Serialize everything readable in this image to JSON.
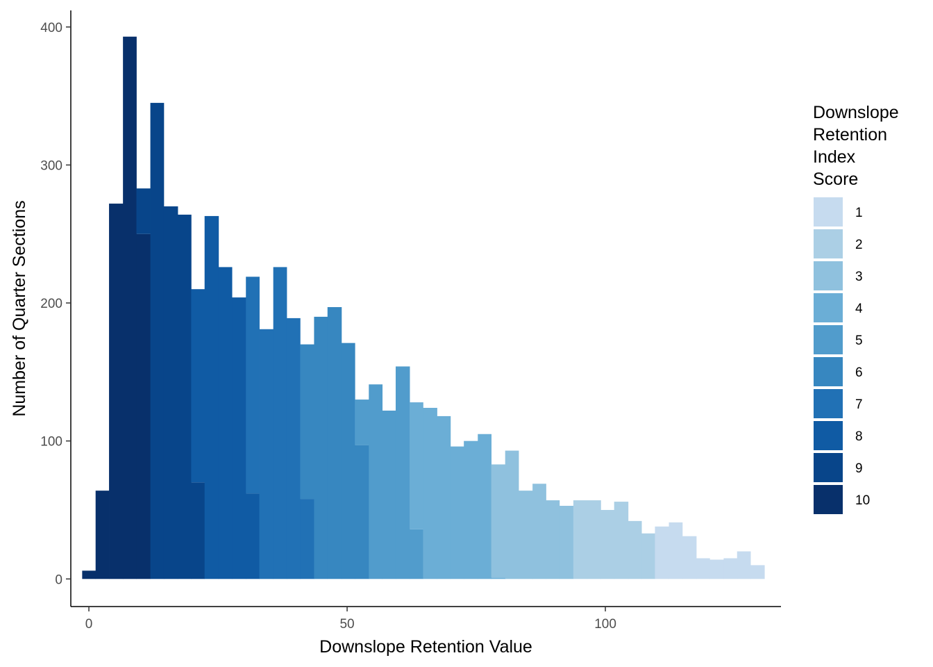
{
  "chart_data": {
    "type": "bar",
    "subtype": "stacked-histogram",
    "xlabel": "Downslope Retention Value",
    "ylabel": "Number of Quarter Sections",
    "xlim": [
      -3.5,
      134
    ],
    "ylim": [
      -20,
      412
    ],
    "x_ticks": [
      0,
      50,
      100
    ],
    "y_ticks": [
      0,
      100,
      200,
      300,
      400
    ],
    "grid": false,
    "legend_position": "right",
    "legend": {
      "title_lines": [
        "Downslope",
        "Retention",
        "Index",
        "Score"
      ],
      "entries": [
        {
          "label": "1",
          "score": 1,
          "color": "#C6DBEF"
        },
        {
          "label": "2",
          "score": 2,
          "color": "#ABCFE5"
        },
        {
          "label": "3",
          "score": 3,
          "color": "#8FC1DE"
        },
        {
          "label": "4",
          "score": 4,
          "color": "#6BAED6"
        },
        {
          "label": "5",
          "score": 5,
          "color": "#519CCC"
        },
        {
          "label": "6",
          "score": 6,
          "color": "#3787C0"
        },
        {
          "label": "7",
          "score": 7,
          "color": "#2171B5"
        },
        {
          "label": "8",
          "score": 8,
          "color": "#105BA4"
        },
        {
          "label": "9",
          "score": 9,
          "color": "#08458A"
        },
        {
          "label": "10",
          "score": 10,
          "color": "#08306B"
        }
      ]
    },
    "bins": [
      {
        "x0": -1.3,
        "x1": 1.3,
        "segments": [
          {
            "score": 10,
            "count": 6
          }
        ]
      },
      {
        "x0": 1.3,
        "x1": 3.9,
        "segments": [
          {
            "score": 10,
            "count": 64
          }
        ]
      },
      {
        "x0": 3.9,
        "x1": 6.6,
        "segments": [
          {
            "score": 10,
            "count": 272
          }
        ]
      },
      {
        "x0": 6.6,
        "x1": 9.2,
        "segments": [
          {
            "score": 10,
            "count": 393
          }
        ]
      },
      {
        "x0": 9.2,
        "x1": 11.9,
        "segments": [
          {
            "score": 10,
            "count": 250
          },
          {
            "score": 9,
            "count": 33
          }
        ]
      },
      {
        "x0": 11.9,
        "x1": 14.5,
        "segments": [
          {
            "score": 9,
            "count": 345
          }
        ]
      },
      {
        "x0": 14.5,
        "x1": 17.2,
        "segments": [
          {
            "score": 9,
            "count": 270
          }
        ]
      },
      {
        "x0": 17.2,
        "x1": 19.8,
        "segments": [
          {
            "score": 9,
            "count": 264
          }
        ]
      },
      {
        "x0": 19.8,
        "x1": 22.4,
        "segments": [
          {
            "score": 9,
            "count": 70
          },
          {
            "score": 8,
            "count": 140
          }
        ]
      },
      {
        "x0": 22.4,
        "x1": 25.1,
        "segments": [
          {
            "score": 8,
            "count": 263
          }
        ]
      },
      {
        "x0": 25.1,
        "x1": 27.7,
        "segments": [
          {
            "score": 8,
            "count": 226
          }
        ]
      },
      {
        "x0": 27.7,
        "x1": 30.4,
        "segments": [
          {
            "score": 8,
            "count": 204
          }
        ]
      },
      {
        "x0": 30.4,
        "x1": 33.0,
        "segments": [
          {
            "score": 8,
            "count": 62
          },
          {
            "score": 7,
            "count": 157
          }
        ]
      },
      {
        "x0": 33.0,
        "x1": 35.7,
        "segments": [
          {
            "score": 7,
            "count": 181
          }
        ]
      },
      {
        "x0": 35.7,
        "x1": 38.3,
        "segments": [
          {
            "score": 7,
            "count": 226
          }
        ]
      },
      {
        "x0": 38.3,
        "x1": 40.9,
        "segments": [
          {
            "score": 7,
            "count": 189
          }
        ]
      },
      {
        "x0": 40.9,
        "x1": 43.6,
        "segments": [
          {
            "score": 7,
            "count": 58
          },
          {
            "score": 6,
            "count": 112
          }
        ]
      },
      {
        "x0": 43.6,
        "x1": 46.2,
        "segments": [
          {
            "score": 6,
            "count": 190
          }
        ]
      },
      {
        "x0": 46.2,
        "x1": 48.9,
        "segments": [
          {
            "score": 6,
            "count": 197
          }
        ]
      },
      {
        "x0": 48.9,
        "x1": 51.5,
        "segments": [
          {
            "score": 6,
            "count": 171
          }
        ]
      },
      {
        "x0": 51.5,
        "x1": 54.2,
        "segments": [
          {
            "score": 6,
            "count": 97
          },
          {
            "score": 5,
            "count": 33
          }
        ]
      },
      {
        "x0": 54.2,
        "x1": 56.8,
        "segments": [
          {
            "score": 5,
            "count": 141
          }
        ]
      },
      {
        "x0": 56.8,
        "x1": 59.4,
        "segments": [
          {
            "score": 5,
            "count": 122
          }
        ]
      },
      {
        "x0": 59.4,
        "x1": 62.1,
        "segments": [
          {
            "score": 5,
            "count": 154
          }
        ]
      },
      {
        "x0": 62.1,
        "x1": 64.7,
        "segments": [
          {
            "score": 5,
            "count": 36
          },
          {
            "score": 4,
            "count": 92
          }
        ]
      },
      {
        "x0": 64.7,
        "x1": 67.4,
        "segments": [
          {
            "score": 4,
            "count": 124
          }
        ]
      },
      {
        "x0": 67.4,
        "x1": 70.0,
        "segments": [
          {
            "score": 4,
            "count": 118
          }
        ]
      },
      {
        "x0": 70.0,
        "x1": 72.6,
        "segments": [
          {
            "score": 4,
            "count": 96
          }
        ]
      },
      {
        "x0": 72.6,
        "x1": 75.3,
        "segments": [
          {
            "score": 4,
            "count": 100
          }
        ]
      },
      {
        "x0": 75.3,
        "x1": 77.9,
        "segments": [
          {
            "score": 4,
            "count": 105
          }
        ]
      },
      {
        "x0": 77.9,
        "x1": 80.6,
        "segments": [
          {
            "score": 4,
            "count": 1
          },
          {
            "score": 3,
            "count": 82
          }
        ]
      },
      {
        "x0": 80.6,
        "x1": 83.2,
        "segments": [
          {
            "score": 3,
            "count": 93
          }
        ]
      },
      {
        "x0": 83.2,
        "x1": 85.9,
        "segments": [
          {
            "score": 3,
            "count": 64
          }
        ]
      },
      {
        "x0": 85.9,
        "x1": 88.5,
        "segments": [
          {
            "score": 3,
            "count": 69
          }
        ]
      },
      {
        "x0": 88.5,
        "x1": 91.1,
        "segments": [
          {
            "score": 3,
            "count": 57
          }
        ]
      },
      {
        "x0": 91.1,
        "x1": 93.8,
        "segments": [
          {
            "score": 3,
            "count": 53
          }
        ]
      },
      {
        "x0": 93.8,
        "x1": 96.4,
        "segments": [
          {
            "score": 2,
            "count": 57
          }
        ]
      },
      {
        "x0": 96.4,
        "x1": 99.1,
        "segments": [
          {
            "score": 2,
            "count": 57
          }
        ]
      },
      {
        "x0": 99.1,
        "x1": 101.7,
        "segments": [
          {
            "score": 2,
            "count": 50
          }
        ]
      },
      {
        "x0": 101.7,
        "x1": 104.4,
        "segments": [
          {
            "score": 2,
            "count": 56
          }
        ]
      },
      {
        "x0": 104.4,
        "x1": 107.0,
        "segments": [
          {
            "score": 2,
            "count": 42
          }
        ]
      },
      {
        "x0": 107.0,
        "x1": 109.6,
        "segments": [
          {
            "score": 2,
            "count": 33
          }
        ]
      },
      {
        "x0": 109.6,
        "x1": 112.3,
        "segments": [
          {
            "score": 1,
            "count": 38
          }
        ]
      },
      {
        "x0": 112.3,
        "x1": 114.9,
        "segments": [
          {
            "score": 1,
            "count": 41
          }
        ]
      },
      {
        "x0": 114.9,
        "x1": 117.6,
        "segments": [
          {
            "score": 1,
            "count": 31
          }
        ]
      },
      {
        "x0": 117.6,
        "x1": 120.2,
        "segments": [
          {
            "score": 1,
            "count": 15
          }
        ]
      },
      {
        "x0": 120.2,
        "x1": 122.9,
        "segments": [
          {
            "score": 1,
            "count": 14
          }
        ]
      },
      {
        "x0": 122.9,
        "x1": 125.5,
        "segments": [
          {
            "score": 1,
            "count": 15
          }
        ]
      },
      {
        "x0": 125.5,
        "x1": 128.1,
        "segments": [
          {
            "score": 1,
            "count": 20
          }
        ]
      },
      {
        "x0": 128.1,
        "x1": 130.8,
        "segments": [
          {
            "score": 1,
            "count": 10
          }
        ]
      }
    ]
  }
}
